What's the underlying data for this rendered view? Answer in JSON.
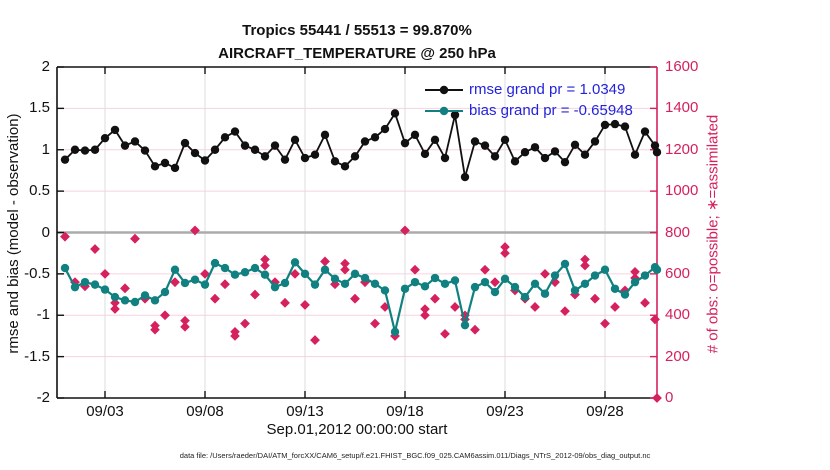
{
  "title": {
    "line1": "Tropics 55441 / 55513 = 99.870%",
    "line2": "AIRCRAFT_TEMPERATURE @ 250 hPa"
  },
  "legend": {
    "rmse_label": "rmse grand pr = 1.0349",
    "bias_label": "bias grand pr = -0.65948"
  },
  "axes": {
    "left": {
      "label": "rmse and bias (model - observation)",
      "tick_labels": [
        "2",
        "1.5",
        "1",
        "0.5",
        "0",
        "-0.5",
        "-1",
        "-1.5",
        "-2"
      ],
      "range": [
        -2,
        2
      ]
    },
    "right": {
      "label": "# of obs: o=possible; ∗=assimilated",
      "tick_labels": [
        "1600",
        "1400",
        "1200",
        "1000",
        "800",
        "600",
        "400",
        "200",
        "0"
      ],
      "range": [
        0,
        1600
      ]
    },
    "x": {
      "label": "Sep.01,2012 00:00:00 start",
      "tick_labels": [
        "09/03",
        "09/08",
        "09/13",
        "09/18",
        "09/23",
        "09/28"
      ]
    }
  },
  "footer": {
    "data_file": "data file: /Users/raeder/DAI/ATM_forcXX/CAM6_setup/f.e21.FHIST_BGC.f09_025.CAM6assim.011/Diags_NTrS_2012-09/obs_diag_output.nc"
  },
  "colors": {
    "rmse": "#111111",
    "bias": "#108080",
    "obs": "#d5215d",
    "legend_text": "#2323dd",
    "grid_h": "#f6d2dd",
    "grid_v": "#dedede",
    "zero_line": "#ababab",
    "axis_black": "#111111"
  },
  "chart_data": {
    "type": "line",
    "title": "Tropics 55441 / 55513 = 99.870% | AIRCRAFT_TEMPERATURE @ 250 hPa",
    "x": {
      "start": "Sep.01,2012 00:00:00",
      "step_hours": 12,
      "n_points": 61,
      "tick_labels": [
        "09/03",
        "09/08",
        "09/13",
        "09/18",
        "09/23",
        "09/28"
      ]
    },
    "left_axis": {
      "ylabel": "rmse and bias (model - observation)",
      "ylim": [
        -2,
        2
      ],
      "grid": true
    },
    "right_axis": {
      "ylabel": "# of obs: o=possible; ∗=assimilated",
      "ylim": [
        0,
        1600
      ]
    },
    "legend_position": "top-right-inside",
    "series": [
      {
        "name": "rmse grand pr = 1.0349",
        "axis": "left",
        "marker": "dot",
        "color_key": "rmse",
        "values": [
          0.88,
          1.0,
          0.99,
          1.0,
          1.14,
          1.24,
          1.05,
          1.1,
          0.99,
          0.8,
          0.84,
          0.78,
          1.08,
          0.96,
          0.87,
          1.0,
          1.15,
          1.22,
          1.05,
          1.0,
          0.92,
          1.05,
          0.88,
          1.12,
          0.9,
          0.94,
          1.18,
          0.86,
          0.8,
          0.92,
          1.1,
          1.15,
          1.25,
          1.44,
          1.08,
          1.18,
          0.95,
          1.12,
          0.9,
          1.42,
          0.67,
          1.1,
          1.05,
          0.92,
          1.12,
          0.86,
          0.97,
          1.03,
          0.9,
          0.98,
          0.85,
          1.06,
          0.94,
          1.1,
          1.3,
          1.31,
          1.28,
          0.94,
          1.22,
          1.05,
          0.97
        ]
      },
      {
        "name": "bias grand pr = -0.65948",
        "axis": "left",
        "marker": "dot",
        "color_key": "bias",
        "values": [
          -0.43,
          -0.66,
          -0.6,
          -0.63,
          -0.69,
          -0.78,
          -0.82,
          -0.84,
          -0.76,
          -0.82,
          -0.72,
          -0.45,
          -0.61,
          -0.57,
          -0.63,
          -0.37,
          -0.43,
          -0.51,
          -0.48,
          -0.43,
          -0.51,
          -0.66,
          -0.61,
          -0.36,
          -0.5,
          -0.63,
          -0.45,
          -0.56,
          -0.62,
          -0.5,
          -0.55,
          -0.62,
          -0.7,
          -1.2,
          -0.68,
          -0.6,
          -0.65,
          -0.55,
          -0.62,
          -0.58,
          -1.12,
          -0.66,
          -0.6,
          -0.72,
          -0.56,
          -0.66,
          -0.78,
          -0.62,
          -0.74,
          -0.52,
          -0.38,
          -0.7,
          -0.62,
          -0.52,
          -0.45,
          -0.68,
          -0.75,
          -0.6,
          -0.52,
          -0.42,
          -0.45
        ]
      },
      {
        "name": "obs possible",
        "axis": "right",
        "marker": "diamond",
        "color_key": "obs",
        "values": [
          780,
          560,
          540,
          720,
          600,
          460,
          530,
          770,
          480,
          350,
          400,
          560,
          374,
          810,
          600,
          480,
          550,
          320,
          360,
          500,
          670,
          560,
          460,
          600,
          450,
          280,
          660,
          550,
          650,
          480,
          560,
          360,
          440,
          300,
          810,
          620,
          430,
          480,
          310,
          440,
          400,
          330,
          620,
          560,
          730,
          520,
          480,
          440,
          600,
          560,
          420,
          500,
          670,
          480,
          360,
          440,
          520,
          610,
          460,
          380,
          0
        ]
      },
      {
        "name": "obs assimilated",
        "axis": "right",
        "marker": "diamond",
        "color_key": "obs",
        "values": [
          780,
          560,
          540,
          720,
          600,
          430,
          530,
          770,
          480,
          330,
          400,
          560,
          344,
          810,
          600,
          480,
          550,
          300,
          360,
          500,
          640,
          560,
          460,
          600,
          450,
          280,
          660,
          550,
          620,
          480,
          560,
          360,
          440,
          300,
          810,
          620,
          400,
          480,
          310,
          440,
          380,
          330,
          620,
          560,
          700,
          520,
          480,
          440,
          600,
          560,
          420,
          500,
          640,
          480,
          360,
          440,
          520,
          580,
          460,
          380,
          0
        ]
      }
    ]
  }
}
